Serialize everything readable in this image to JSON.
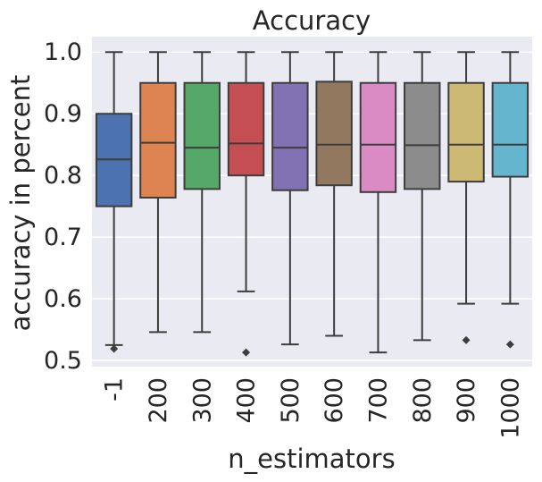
{
  "chart_data": {
    "type": "box",
    "title": "Accuracy",
    "xlabel": "n_estimators",
    "ylabel": "accuracy in percent",
    "ylim": [
      0.49,
      1.025
    ],
    "yticks": [
      0.5,
      0.6,
      0.7,
      0.8,
      0.9,
      1.0
    ],
    "ytick_labels": [
      "0.5",
      "0.6",
      "0.7",
      "0.8",
      "0.9",
      "1.0"
    ],
    "grid": true,
    "background": "#eaeaf2",
    "boxes": [
      {
        "label": "-1",
        "color": "#4c72b0",
        "whislo": 0.525,
        "q1": 0.75,
        "med": 0.826,
        "q3": 0.9,
        "whishi": 1.0,
        "fliers": [
          0.519
        ]
      },
      {
        "label": "200",
        "color": "#dd8452",
        "whislo": 0.546,
        "q1": 0.764,
        "med": 0.853,
        "q3": 0.95,
        "whishi": 1.0,
        "fliers": []
      },
      {
        "label": "300",
        "color": "#55a868",
        "whislo": 0.546,
        "q1": 0.778,
        "med": 0.845,
        "q3": 0.95,
        "whishi": 1.0,
        "fliers": []
      },
      {
        "label": "400",
        "color": "#c44e52",
        "whislo": 0.612,
        "q1": 0.8,
        "med": 0.852,
        "q3": 0.95,
        "whishi": 1.0,
        "fliers": [
          0.513
        ]
      },
      {
        "label": "500",
        "color": "#8172b3",
        "whislo": 0.526,
        "q1": 0.776,
        "med": 0.845,
        "q3": 0.95,
        "whishi": 1.0,
        "fliers": []
      },
      {
        "label": "600",
        "color": "#937860",
        "whislo": 0.54,
        "q1": 0.784,
        "med": 0.85,
        "q3": 0.952,
        "whishi": 1.0,
        "fliers": []
      },
      {
        "label": "700",
        "color": "#da8bc3",
        "whislo": 0.513,
        "q1": 0.773,
        "med": 0.85,
        "q3": 0.95,
        "whishi": 1.0,
        "fliers": []
      },
      {
        "label": "800",
        "color": "#8c8c8c",
        "whislo": 0.533,
        "q1": 0.778,
        "med": 0.849,
        "q3": 0.95,
        "whishi": 1.0,
        "fliers": []
      },
      {
        "label": "900",
        "color": "#ccb974",
        "whislo": 0.592,
        "q1": 0.79,
        "med": 0.85,
        "q3": 0.95,
        "whishi": 1.0,
        "fliers": [
          0.533
        ]
      },
      {
        "label": "1000",
        "color": "#64b5cd",
        "whislo": 0.592,
        "q1": 0.798,
        "med": 0.85,
        "q3": 0.95,
        "whishi": 1.0,
        "fliers": [
          0.526
        ]
      }
    ]
  }
}
